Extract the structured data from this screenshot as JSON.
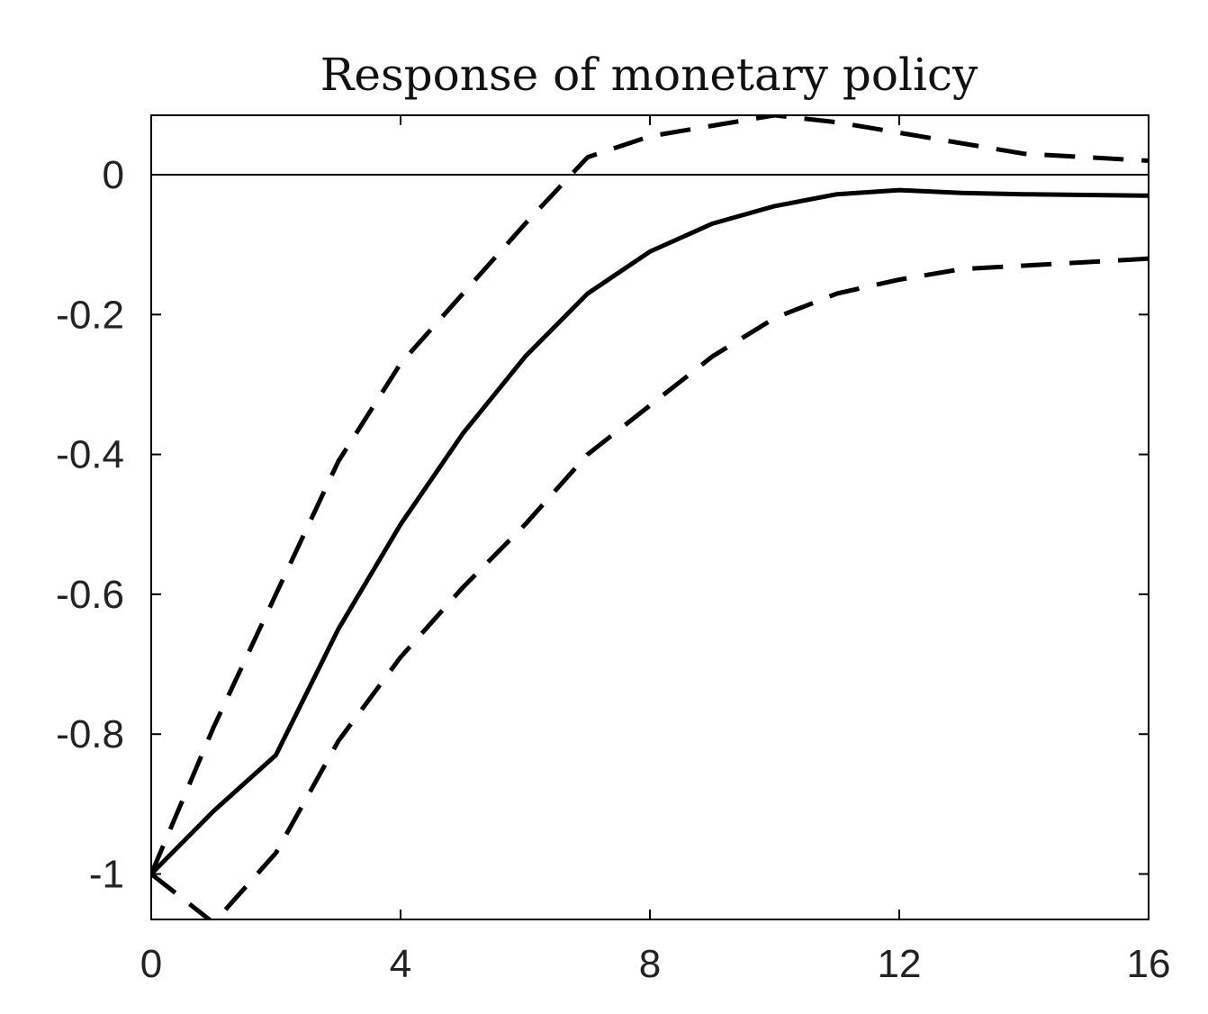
{
  "chart_data": {
    "type": "line",
    "title": "Response of monetary policy",
    "xlabel": "",
    "ylabel": "",
    "xlim": [
      0,
      16
    ],
    "ylim": [
      -1.065,
      0.085
    ],
    "x_ticks": [
      0,
      4,
      8,
      12,
      16
    ],
    "x_tick_labels": [
      "0",
      "4",
      "8",
      "12",
      "16"
    ],
    "y_ticks": [
      0,
      -0.2,
      -0.4,
      -0.6,
      -0.8,
      -1
    ],
    "y_tick_labels": [
      "0",
      "-0.2",
      "-0.4",
      "-0.6",
      "-0.8",
      "-1"
    ],
    "grid": false,
    "legend": "none",
    "zero_line": true,
    "x": [
      0,
      1,
      2,
      3,
      4,
      5,
      6,
      7,
      8,
      9,
      10,
      11,
      12,
      13,
      14,
      15,
      16
    ],
    "series": [
      {
        "style": "solid",
        "color": "#000000",
        "values": [
          -1.0,
          -0.91,
          -0.83,
          -0.65,
          -0.5,
          -0.37,
          -0.26,
          -0.17,
          -0.11,
          -0.07,
          -0.045,
          -0.028,
          -0.022,
          -0.026,
          -0.028,
          -0.029,
          -0.03
        ]
      },
      {
        "style": "dashed",
        "color": "#000000",
        "values": [
          -1.0,
          -0.79,
          -0.6,
          -0.41,
          -0.27,
          -0.17,
          -0.07,
          0.025,
          0.055,
          0.07,
          0.085,
          0.075,
          0.06,
          0.045,
          0.03,
          0.025,
          0.02
        ]
      },
      {
        "style": "dashed",
        "color": "#000000",
        "values": [
          -1.0,
          -1.07,
          -0.97,
          -0.81,
          -0.69,
          -0.59,
          -0.5,
          -0.4,
          -0.33,
          -0.26,
          -0.205,
          -0.17,
          -0.15,
          -0.135,
          -0.13,
          -0.125,
          -0.12
        ]
      }
    ]
  }
}
